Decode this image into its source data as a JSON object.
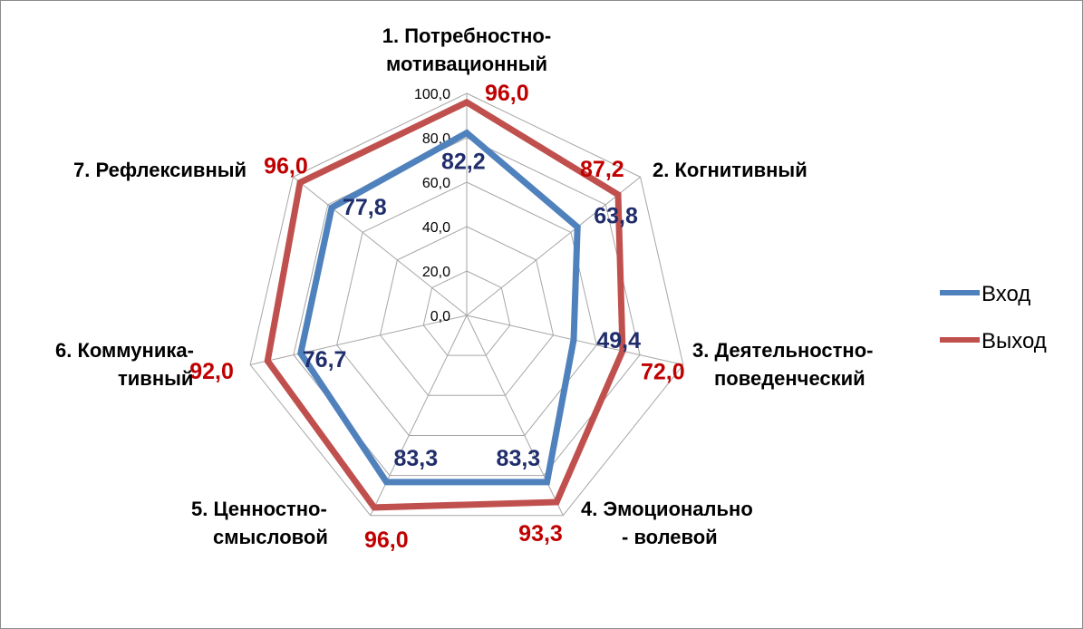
{
  "chart_data": {
    "type": "radar",
    "categories": [
      [
        "1. Потребностно-",
        "мотивационный"
      ],
      [
        "2.    Когнитивный"
      ],
      [
        "3.   Деятельностно-",
        "поведенческий"
      ],
      [
        "4.    Эмоционально",
        "- волевой"
      ],
      [
        "5.    Ценностно-",
        "смысловой"
      ],
      [
        "6.    Коммуника-",
        "тивный"
      ],
      [
        "7.    Рефлексивный"
      ]
    ],
    "series": [
      {
        "name": "Вход",
        "values": [
          82.2,
          63.8,
          49.4,
          83.3,
          83.3,
          76.7,
          77.8
        ],
        "labels": [
          "82,2",
          "63,8",
          "49,4",
          "83,3",
          "83,3",
          "76,7",
          "77,8"
        ]
      },
      {
        "name": "Выход",
        "values": [
          96.0,
          87.2,
          72.0,
          93.3,
          96.0,
          92.0,
          96.0
        ],
        "labels": [
          "96,0",
          "87,2",
          "72,0",
          "93,3",
          "96,0",
          "92,0",
          "96,0"
        ]
      }
    ],
    "radial_ticks": [
      "0,0",
      "20,0",
      "40,0",
      "60,0",
      "80,0",
      "100,0"
    ],
    "rlim": [
      0,
      100
    ],
    "grid": true,
    "legend": "right",
    "colors": {
      "series": [
        "#4f81bd",
        "#c0504d"
      ],
      "labels": [
        "#1f2d6b",
        "#c00000"
      ],
      "grid": "#a6a6a6"
    }
  }
}
